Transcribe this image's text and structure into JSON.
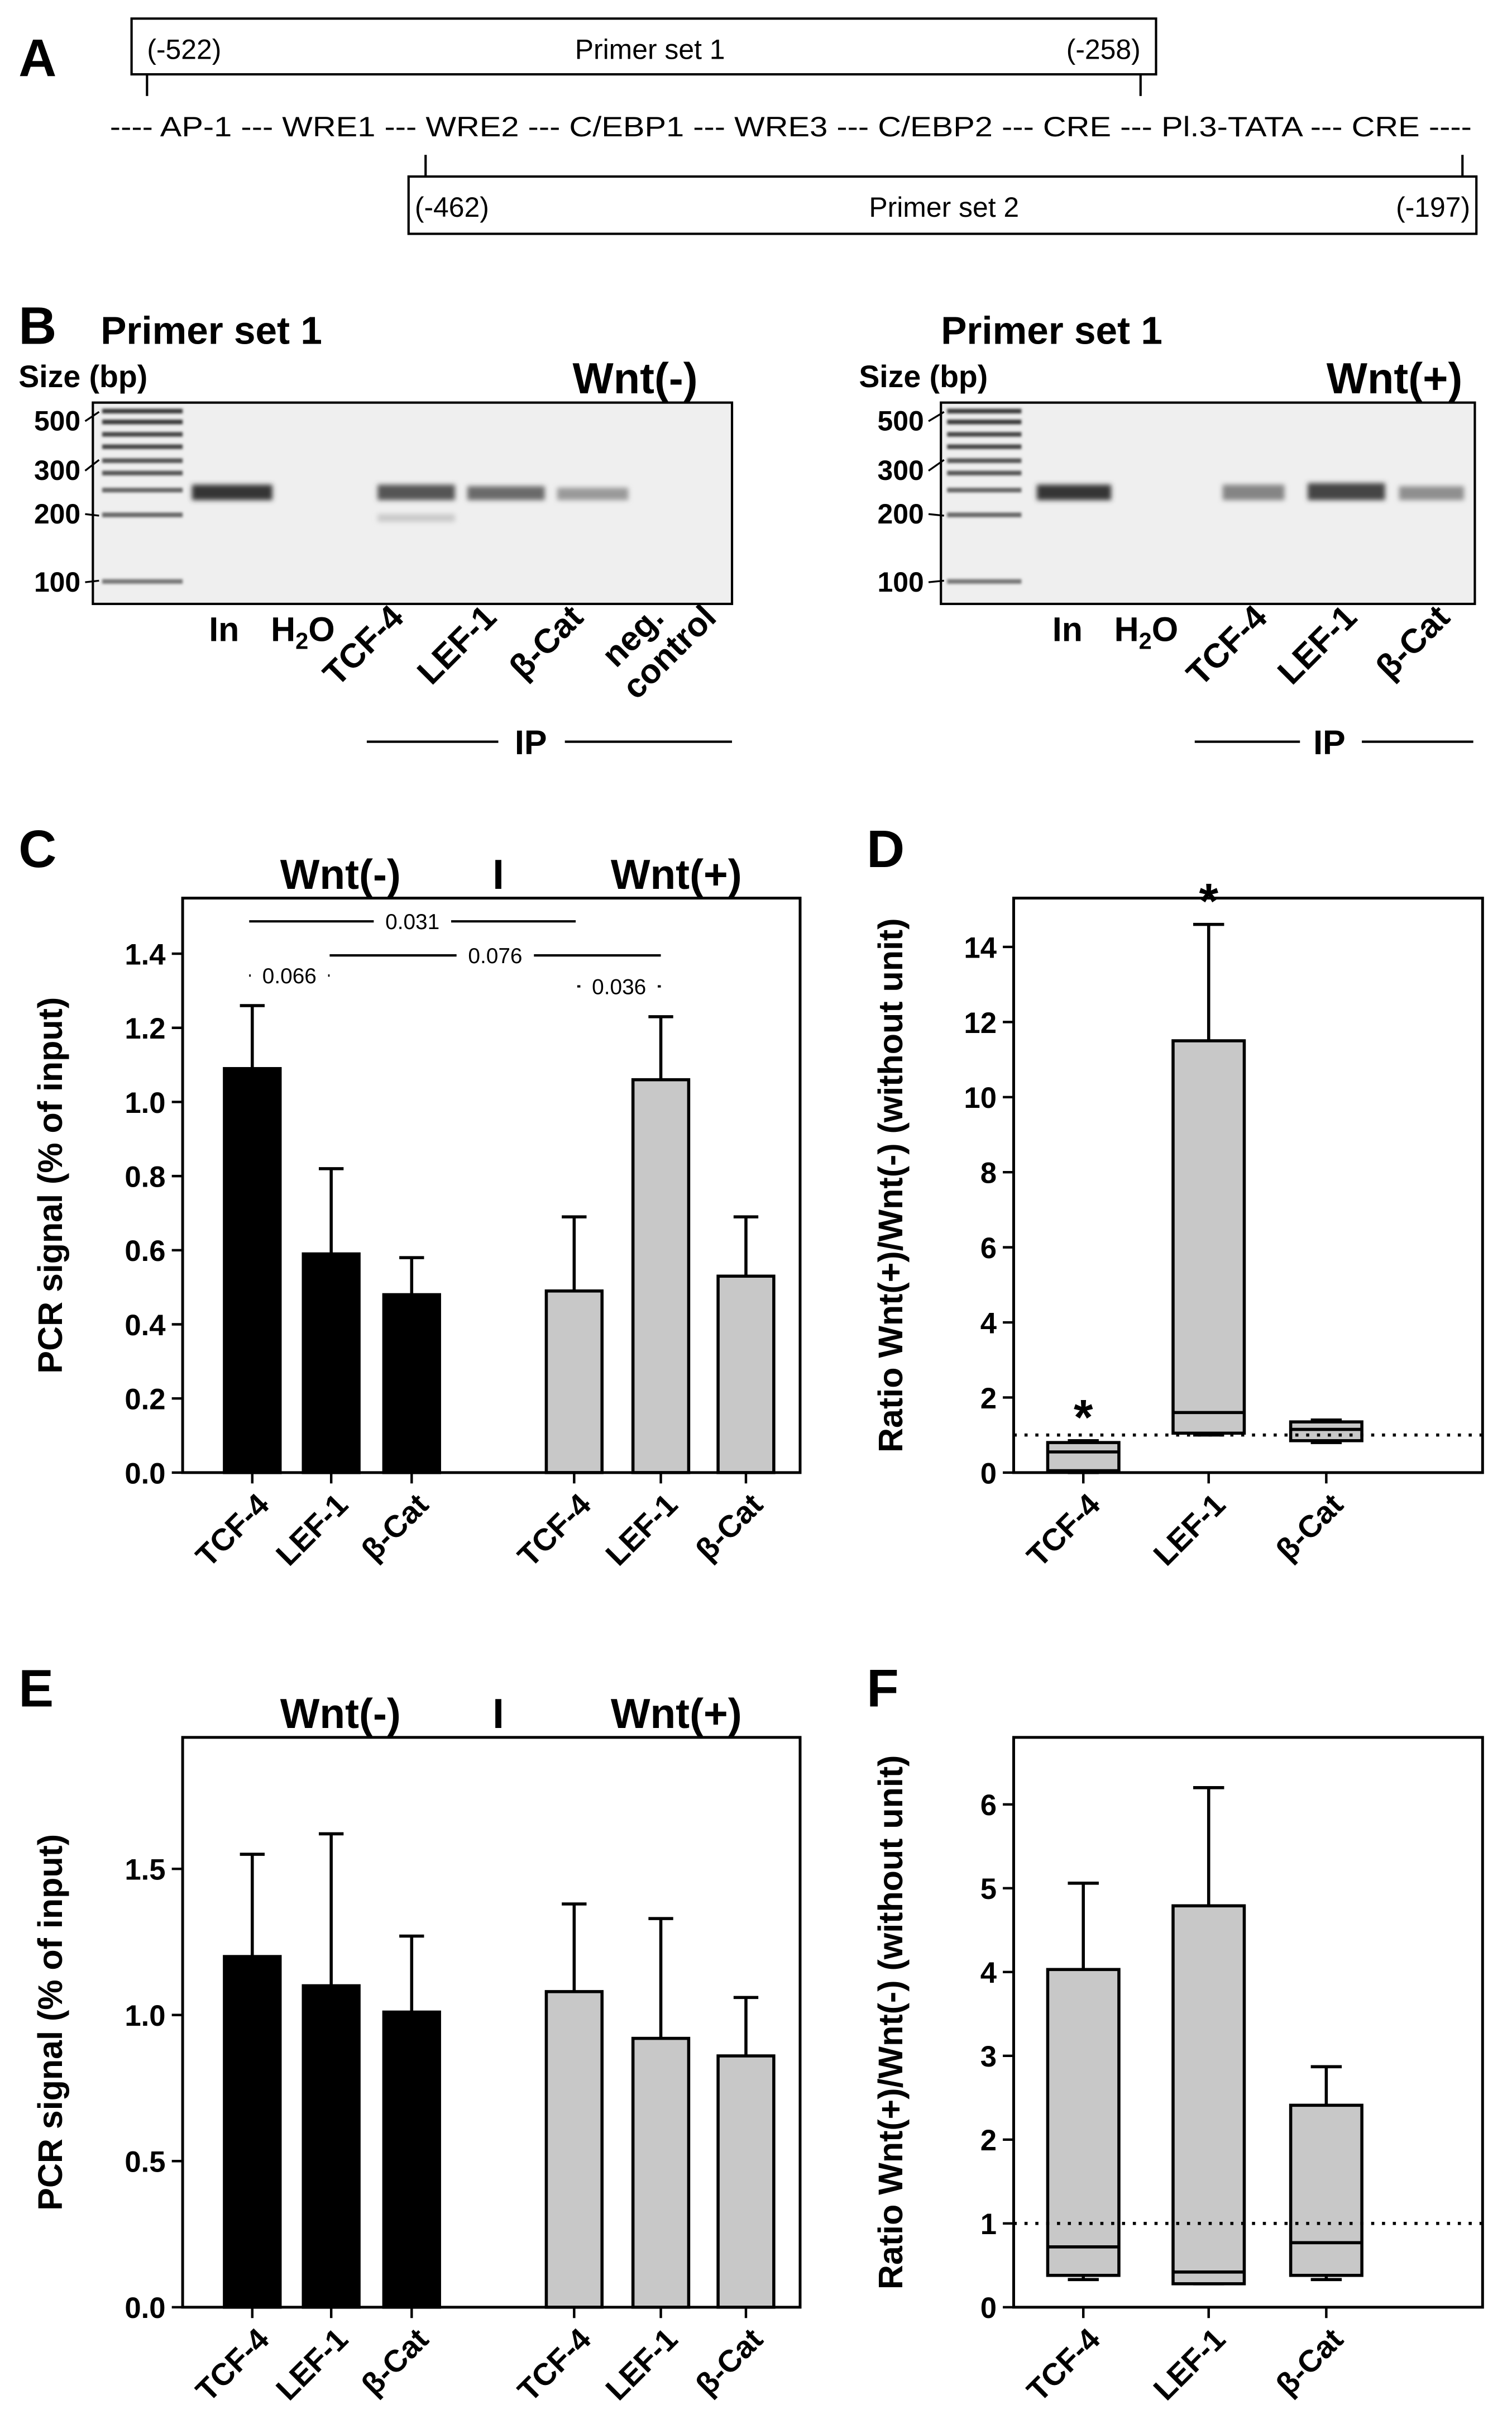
{
  "panel_letters": {
    "a": "A",
    "b": "B",
    "c": "C",
    "d": "D",
    "e": "E",
    "f": "F"
  },
  "panel_a": {
    "primer1": {
      "label": "Primer set 1",
      "start": "(-522)",
      "end": "(-258)"
    },
    "primer2": {
      "label": "Primer set 2",
      "start": "(-462)",
      "end": "(-197)"
    },
    "sequence": "---- AP-1 --- WRE1 --- WRE2 --- C/EBP1 --- WRE3 --- C/EBP2 --- CRE --- Pl.3-TATA --- CRE ----"
  },
  "panel_b": {
    "left": {
      "title": "Primer set 1",
      "size_label": "Size (bp)",
      "condition": "Wnt(-)",
      "size_ticks": [
        "500",
        "300",
        "200",
        "100"
      ],
      "lane_labels": [
        "In",
        "TCF-4",
        "LEF-1",
        "β-Cat",
        "neg.",
        "control"
      ],
      "h2o": {
        "main": "H",
        "sub": "2",
        "tail": "O"
      },
      "ip_label": "IP"
    },
    "right": {
      "title": "Primer set 1",
      "size_label": "Size (bp)",
      "condition": "Wnt(+)",
      "size_ticks": [
        "500",
        "300",
        "200",
        "100"
      ],
      "lane_labels": [
        "In",
        "TCF-4",
        "LEF-1",
        "β-Cat"
      ],
      "h2o": {
        "main": "H",
        "sub": "2",
        "tail": "O"
      },
      "ip_label": "IP"
    }
  },
  "colors": {
    "wnt_minus": "#000000",
    "wnt_plus": "#c8c8c8",
    "box": "#c8c8c8",
    "gel": "#efefef"
  },
  "chart_data": [
    {
      "panel": "C",
      "type": "bar",
      "ylabel": "PCR signal (% of input)",
      "header": {
        "left": "Wnt(-)",
        "sep": "I",
        "right": "Wnt(+)"
      },
      "categories": [
        "TCF-4",
        "LEF-1",
        "β-Cat"
      ],
      "series": [
        {
          "name": "Wnt(-)",
          "values": [
            1.09,
            0.59,
            0.48
          ],
          "errors": [
            0.17,
            0.23,
            0.1
          ]
        },
        {
          "name": "Wnt(+)",
          "values": [
            0.49,
            1.06,
            0.53
          ],
          "errors": [
            0.2,
            0.17,
            0.16
          ]
        }
      ],
      "ylim": [
        0,
        1.55
      ],
      "yticks": [
        "0.0",
        "0.2",
        "0.4",
        "0.6",
        "0.8",
        "1.0",
        "1.2",
        "1.4"
      ],
      "significance": [
        {
          "label": "0.031",
          "from": "Wnt(-) TCF-4",
          "to": "Wnt(+) TCF-4"
        },
        {
          "label": "0.066",
          "from": "Wnt(-) TCF-4",
          "to": "Wnt(-) LEF-1"
        },
        {
          "label": "0.076",
          "from": "Wnt(-) LEF-1",
          "to": "Wnt(+) LEF-1"
        },
        {
          "label": "0.036",
          "from": "Wnt(+) TCF-4",
          "to": "Wnt(+) LEF-1"
        }
      ]
    },
    {
      "panel": "D",
      "type": "box",
      "ylabel": "Ratio Wnt(+)/Wnt(-) (without unit)",
      "categories": [
        "TCF-4",
        "LEF-1",
        "β-Cat"
      ],
      "boxes": [
        {
          "wmin": 0.0,
          "q1": 0.05,
          "median": 0.55,
          "q3": 0.8,
          "wmax": 0.85,
          "star": "*"
        },
        {
          "wmin": 1.0,
          "q1": 1.05,
          "median": 1.6,
          "q3": 11.5,
          "wmax": 14.6,
          "star": "*"
        },
        {
          "wmin": 0.8,
          "q1": 0.85,
          "median": 1.15,
          "q3": 1.35,
          "wmax": 1.4,
          "star": ""
        }
      ],
      "reference_line": 1,
      "ylim": [
        0,
        15.3
      ],
      "yticks": [
        "0",
        "2",
        "4",
        "6",
        "8",
        "10",
        "12",
        "14"
      ]
    },
    {
      "panel": "E",
      "type": "bar",
      "ylabel": "PCR signal (% of input)",
      "header": {
        "left": "Wnt(-)",
        "sep": "I",
        "right": "Wnt(+)"
      },
      "categories": [
        "TCF-4",
        "LEF-1",
        "β-Cat"
      ],
      "series": [
        {
          "name": "Wnt(-)",
          "values": [
            1.2,
            1.1,
            1.01
          ],
          "errors": [
            0.35,
            0.52,
            0.26
          ]
        },
        {
          "name": "Wnt(+)",
          "values": [
            1.08,
            0.92,
            0.86
          ],
          "errors": [
            0.3,
            0.41,
            0.2
          ]
        }
      ],
      "ylim": [
        0,
        1.95
      ],
      "yticks": [
        "0.0",
        "0.5",
        "1.0",
        "1.5"
      ]
    },
    {
      "panel": "F",
      "type": "box",
      "ylabel": "Ratio Wnt(+)/Wnt(-) (without unit)",
      "categories": [
        "TCF-4",
        "LEF-1",
        "β-Cat"
      ],
      "boxes": [
        {
          "wmin": 0.33,
          "q1": 0.38,
          "median": 0.72,
          "q3": 4.03,
          "wmax": 5.06
        },
        {
          "wmin": 0.28,
          "q1": 0.28,
          "median": 0.42,
          "q3": 4.79,
          "wmax": 6.2
        },
        {
          "wmin": 0.33,
          "q1": 0.38,
          "median": 0.77,
          "q3": 2.41,
          "wmax": 2.87
        }
      ],
      "reference_line": 1,
      "ylim": [
        0,
        6.8
      ],
      "yticks": [
        "0",
        "1",
        "2",
        "3",
        "4",
        "5",
        "6"
      ]
    }
  ]
}
